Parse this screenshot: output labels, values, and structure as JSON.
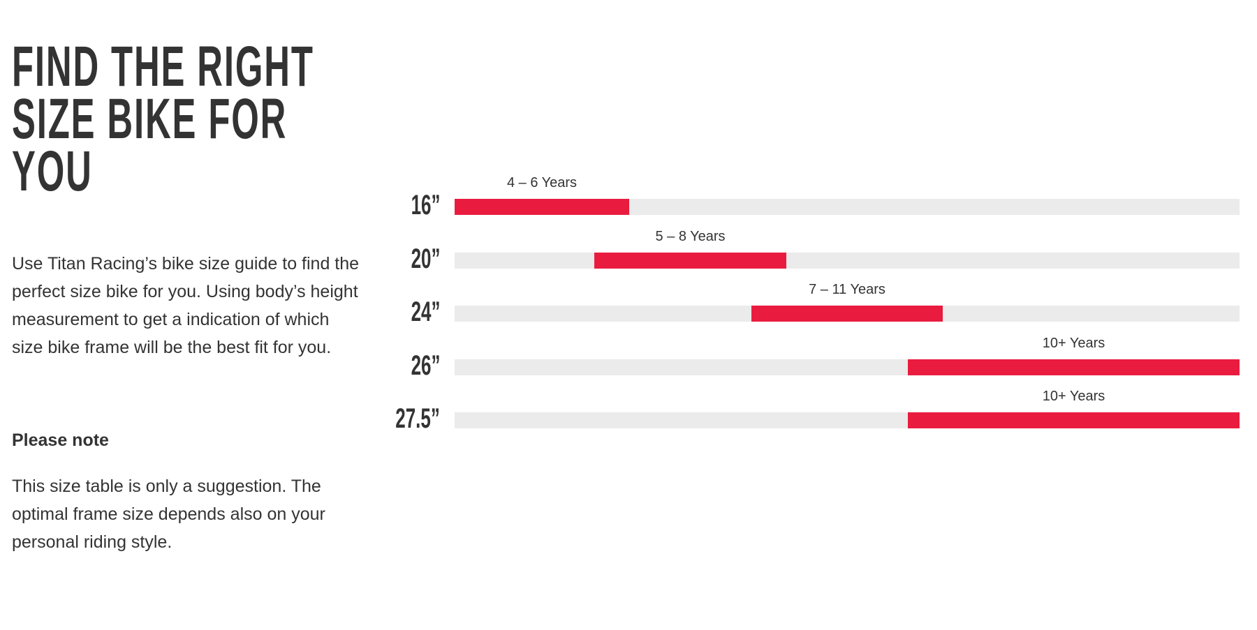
{
  "header": {
    "title_lines": [
      "FIND THE RIGHT",
      "SIZE BIKE FOR",
      "YOU"
    ]
  },
  "intro": "Use Titan Racing’s bike size guide to find the perfect size bike for you. Using body’s height measurement to get a indication of which size bike frame will be the best fit for you.",
  "note": {
    "heading": "Please note",
    "text": "This size table is only a suggestion. The optimal frame size depends also on your personal riding style."
  },
  "size_guide": {
    "rows": [
      {
        "size": "16”",
        "range": "4 – 6 Years"
      },
      {
        "size": "20”",
        "range": "5 – 8 Years"
      },
      {
        "size": "24”",
        "range": "7 – 11 Years"
      },
      {
        "size": "26”",
        "range": "10+ Years"
      },
      {
        "size": "27.5”",
        "range": "10+ Years"
      }
    ]
  }
}
